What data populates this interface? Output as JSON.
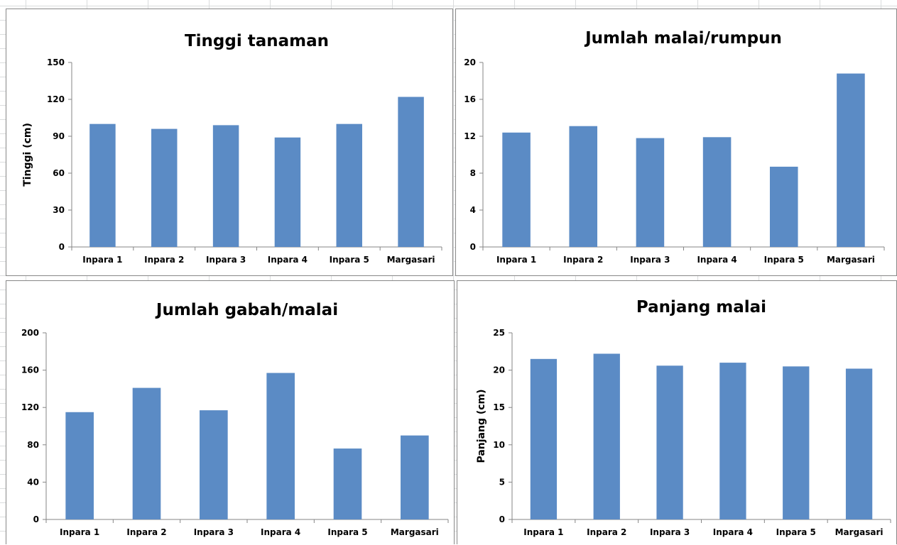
{
  "chart_data": [
    {
      "type": "bar",
      "title": "Tinggi tanaman",
      "ylabel": "Tinggi (cm)",
      "xlabel": "",
      "categories": [
        "Inpara 1",
        "Inpara 2",
        "Inpara 3",
        "Inpara 4",
        "Inpara 5",
        "Margasari"
      ],
      "values": [
        100,
        96,
        99,
        89,
        100,
        122
      ],
      "ylim": [
        0,
        150
      ],
      "yticks": [
        "0",
        "30",
        "60",
        "90",
        "120",
        "150"
      ],
      "color": "#5b8bc5",
      "grid": false,
      "legend": "none"
    },
    {
      "type": "bar",
      "title": "Jumlah malai/rumpun",
      "ylabel": "",
      "xlabel": "",
      "categories": [
        "Inpara 1",
        "Inpara 2",
        "Inpara 3",
        "Inpara 4",
        "Inpara 5",
        "Margasari"
      ],
      "values": [
        12.4,
        13.1,
        11.8,
        11.9,
        8.7,
        18.8
      ],
      "ylim": [
        0,
        20
      ],
      "yticks": [
        "0",
        "4",
        "8",
        "12",
        "16",
        "20"
      ],
      "color": "#5b8bc5",
      "grid": false,
      "legend": "none"
    },
    {
      "type": "bar",
      "title": "Jumlah gabah/malai",
      "ylabel": "",
      "xlabel": "",
      "categories": [
        "Inpara 1",
        "Inpara 2",
        "Inpara 3",
        "Inpara 4",
        "Inpara 5",
        "Margasari"
      ],
      "values": [
        115,
        141,
        117,
        157,
        76,
        90
      ],
      "ylim": [
        0,
        200
      ],
      "yticks": [
        "0",
        "40",
        "80",
        "120",
        "160",
        "200"
      ],
      "color": "#5b8bc5",
      "grid": false,
      "legend": "none"
    },
    {
      "type": "bar",
      "title": "Panjang malai",
      "ylabel": "Panjang (cm)",
      "xlabel": "",
      "categories": [
        "Inpara 1",
        "Inpara 2",
        "Inpara 3",
        "Inpara 4",
        "Inpara 5",
        "Margasari"
      ],
      "values": [
        21.5,
        22.2,
        20.6,
        21.0,
        20.5,
        20.2
      ],
      "ylim": [
        0,
        25
      ],
      "yticks": [
        "0",
        "5",
        "10",
        "15",
        "20",
        "25"
      ],
      "color": "#5b8bc5",
      "grid": false,
      "legend": "none"
    }
  ]
}
